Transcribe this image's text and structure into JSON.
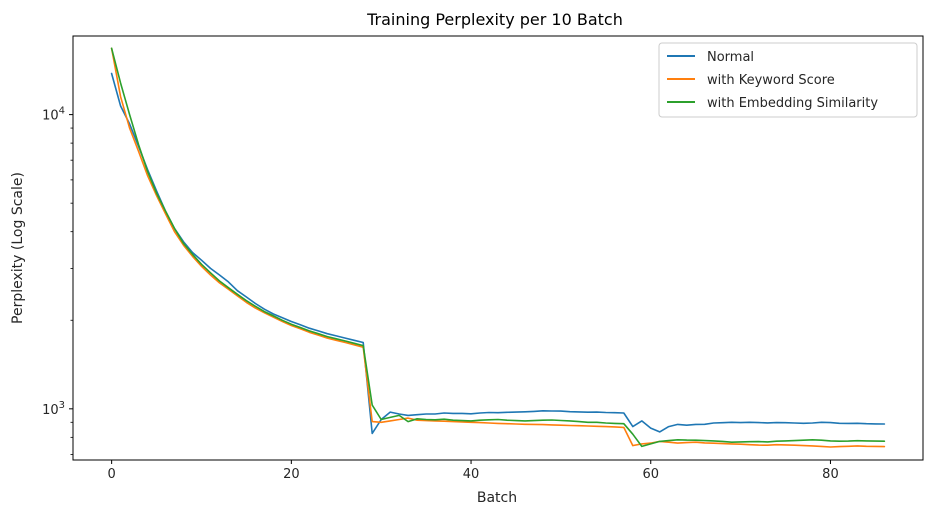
{
  "chart_data": {
    "type": "line",
    "title": "Training Perplexity per 10 Batch",
    "xlabel": "Batch",
    "ylabel": "Perplexity (Log Scale)",
    "xlim": [
      -4.3,
      90.3
    ],
    "ylim": [
      670,
      18500
    ],
    "yscale": "log",
    "grid": false,
    "legend_position": "top-right",
    "x_ticks": [
      0,
      20,
      40,
      60,
      80
    ],
    "x_tick_labels": [
      "0",
      "20",
      "40",
      "60",
      "80"
    ],
    "y_ticks": [
      1000,
      10000
    ],
    "y_tick_base": "10",
    "y_tick_exponents": [
      "3",
      "4"
    ],
    "series": [
      {
        "name": "Normal",
        "color": "#1f77b4",
        "points": [
          [
            0,
            13800
          ],
          [
            1,
            10700
          ],
          [
            2,
            9300
          ],
          [
            3,
            7800
          ],
          [
            4,
            6500
          ],
          [
            5,
            5500
          ],
          [
            6,
            4700
          ],
          [
            7,
            4100
          ],
          [
            8,
            3700
          ],
          [
            9,
            3400
          ],
          [
            10,
            3200
          ],
          [
            11,
            3000
          ],
          [
            12,
            2850
          ],
          [
            13,
            2700
          ],
          [
            14,
            2520
          ],
          [
            15,
            2400
          ],
          [
            16,
            2280
          ],
          [
            17,
            2180
          ],
          [
            18,
            2100
          ],
          [
            19,
            2040
          ],
          [
            20,
            1980
          ],
          [
            21,
            1930
          ],
          [
            22,
            1880
          ],
          [
            23,
            1840
          ],
          [
            24,
            1800
          ],
          [
            25,
            1770
          ],
          [
            26,
            1740
          ],
          [
            27,
            1710
          ],
          [
            28,
            1680
          ],
          [
            29,
            825
          ],
          [
            30,
            920
          ],
          [
            31,
            975
          ],
          [
            32,
            960
          ],
          [
            33,
            950
          ],
          [
            34,
            955
          ],
          [
            35,
            960
          ],
          [
            36,
            960
          ],
          [
            37,
            968
          ],
          [
            38,
            965
          ],
          [
            39,
            965
          ],
          [
            40,
            962
          ],
          [
            41,
            968
          ],
          [
            42,
            972
          ],
          [
            43,
            970
          ],
          [
            44,
            973
          ],
          [
            45,
            975
          ],
          [
            46,
            977
          ],
          [
            47,
            980
          ],
          [
            48,
            985
          ],
          [
            49,
            983
          ],
          [
            50,
            982
          ],
          [
            51,
            978
          ],
          [
            52,
            976
          ],
          [
            53,
            974
          ],
          [
            54,
            975
          ],
          [
            55,
            972
          ],
          [
            56,
            970
          ],
          [
            57,
            968
          ],
          [
            58,
            870
          ],
          [
            59,
            910
          ],
          [
            60,
            860
          ],
          [
            61,
            835
          ],
          [
            62,
            870
          ],
          [
            63,
            885
          ],
          [
            64,
            880
          ],
          [
            65,
            885
          ],
          [
            66,
            886
          ],
          [
            67,
            895
          ],
          [
            68,
            897
          ],
          [
            69,
            900
          ],
          [
            70,
            898
          ],
          [
            71,
            900
          ],
          [
            72,
            898
          ],
          [
            73,
            896
          ],
          [
            74,
            898
          ],
          [
            75,
            897
          ],
          [
            76,
            895
          ],
          [
            77,
            893
          ],
          [
            78,
            895
          ],
          [
            79,
            900
          ],
          [
            80,
            898
          ],
          [
            81,
            893
          ],
          [
            82,
            892
          ],
          [
            83,
            893
          ],
          [
            84,
            890
          ],
          [
            85,
            889
          ],
          [
            86,
            888
          ]
        ]
      },
      {
        "name": "with Keyword Score",
        "color": "#ff7f0e",
        "points": [
          [
            0,
            16800
          ],
          [
            1,
            11500
          ],
          [
            2,
            9000
          ],
          [
            3,
            7500
          ],
          [
            4,
            6200
          ],
          [
            5,
            5300
          ],
          [
            6,
            4600
          ],
          [
            7,
            4000
          ],
          [
            8,
            3600
          ],
          [
            9,
            3300
          ],
          [
            10,
            3050
          ],
          [
            11,
            2850
          ],
          [
            12,
            2680
          ],
          [
            13,
            2550
          ],
          [
            14,
            2420
          ],
          [
            15,
            2300
          ],
          [
            16,
            2200
          ],
          [
            17,
            2120
          ],
          [
            18,
            2050
          ],
          [
            19,
            1980
          ],
          [
            20,
            1920
          ],
          [
            21,
            1870
          ],
          [
            22,
            1820
          ],
          [
            23,
            1780
          ],
          [
            24,
            1740
          ],
          [
            25,
            1710
          ],
          [
            26,
            1680
          ],
          [
            27,
            1650
          ],
          [
            28,
            1620
          ],
          [
            29,
            905
          ],
          [
            30,
            900
          ],
          [
            31,
            910
          ],
          [
            32,
            920
          ],
          [
            33,
            930
          ],
          [
            34,
            915
          ],
          [
            35,
            912
          ],
          [
            36,
            910
          ],
          [
            37,
            908
          ],
          [
            38,
            905
          ],
          [
            39,
            903
          ],
          [
            40,
            900
          ],
          [
            41,
            898
          ],
          [
            42,
            895
          ],
          [
            43,
            892
          ],
          [
            44,
            890
          ],
          [
            45,
            888
          ],
          [
            46,
            886
          ],
          [
            47,
            885
          ],
          [
            48,
            884
          ],
          [
            49,
            882
          ],
          [
            50,
            880
          ],
          [
            51,
            878
          ],
          [
            52,
            876
          ],
          [
            53,
            874
          ],
          [
            54,
            872
          ],
          [
            55,
            870
          ],
          [
            56,
            868
          ],
          [
            57,
            865
          ],
          [
            58,
            750
          ],
          [
            59,
            760
          ],
          [
            60,
            765
          ],
          [
            61,
            775
          ],
          [
            62,
            770
          ],
          [
            63,
            765
          ],
          [
            64,
            768
          ],
          [
            65,
            770
          ],
          [
            66,
            766
          ],
          [
            67,
            764
          ],
          [
            68,
            762
          ],
          [
            69,
            760
          ],
          [
            70,
            758
          ],
          [
            71,
            755
          ],
          [
            72,
            753
          ],
          [
            73,
            752
          ],
          [
            74,
            755
          ],
          [
            75,
            754
          ],
          [
            76,
            752
          ],
          [
            77,
            750
          ],
          [
            78,
            748
          ],
          [
            79,
            745
          ],
          [
            80,
            742
          ],
          [
            81,
            744
          ],
          [
            82,
            746
          ],
          [
            83,
            748
          ],
          [
            84,
            746
          ],
          [
            85,
            745
          ],
          [
            86,
            744
          ]
        ]
      },
      {
        "name": "with Embedding Similarity",
        "color": "#2ca02c",
        "points": [
          [
            0,
            16800
          ],
          [
            1,
            12800
          ],
          [
            2,
            10000
          ],
          [
            3,
            7900
          ],
          [
            4,
            6400
          ],
          [
            5,
            5400
          ],
          [
            6,
            4700
          ],
          [
            7,
            4100
          ],
          [
            8,
            3650
          ],
          [
            9,
            3350
          ],
          [
            10,
            3100
          ],
          [
            11,
            2900
          ],
          [
            12,
            2720
          ],
          [
            13,
            2580
          ],
          [
            14,
            2450
          ],
          [
            15,
            2330
          ],
          [
            16,
            2230
          ],
          [
            17,
            2140
          ],
          [
            18,
            2070
          ],
          [
            19,
            2000
          ],
          [
            20,
            1940
          ],
          [
            21,
            1890
          ],
          [
            22,
            1840
          ],
          [
            23,
            1800
          ],
          [
            24,
            1760
          ],
          [
            25,
            1730
          ],
          [
            26,
            1700
          ],
          [
            27,
            1670
          ],
          [
            28,
            1640
          ],
          [
            29,
            1030
          ],
          [
            30,
            920
          ],
          [
            31,
            935
          ],
          [
            32,
            950
          ],
          [
            33,
            905
          ],
          [
            34,
            925
          ],
          [
            35,
            920
          ],
          [
            36,
            918
          ],
          [
            37,
            922
          ],
          [
            38,
            915
          ],
          [
            39,
            912
          ],
          [
            40,
            910
          ],
          [
            41,
            915
          ],
          [
            42,
            918
          ],
          [
            43,
            920
          ],
          [
            44,
            915
          ],
          [
            45,
            912
          ],
          [
            46,
            910
          ],
          [
            47,
            912
          ],
          [
            48,
            915
          ],
          [
            49,
            916
          ],
          [
            50,
            913
          ],
          [
            51,
            910
          ],
          [
            52,
            905
          ],
          [
            53,
            900
          ],
          [
            54,
            900
          ],
          [
            55,
            895
          ],
          [
            56,
            892
          ],
          [
            57,
            890
          ],
          [
            58,
            820
          ],
          [
            59,
            745
          ],
          [
            60,
            760
          ],
          [
            61,
            775
          ],
          [
            62,
            780
          ],
          [
            63,
            785
          ],
          [
            64,
            783
          ],
          [
            65,
            782
          ],
          [
            66,
            780
          ],
          [
            67,
            778
          ],
          [
            68,
            775
          ],
          [
            69,
            770
          ],
          [
            70,
            772
          ],
          [
            71,
            773
          ],
          [
            72,
            774
          ],
          [
            73,
            772
          ],
          [
            74,
            776
          ],
          [
            75,
            778
          ],
          [
            76,
            780
          ],
          [
            77,
            782
          ],
          [
            78,
            785
          ],
          [
            79,
            782
          ],
          [
            80,
            778
          ],
          [
            81,
            776
          ],
          [
            82,
            777
          ],
          [
            83,
            779
          ],
          [
            84,
            778
          ],
          [
            85,
            777
          ],
          [
            86,
            776
          ]
        ]
      }
    ]
  }
}
